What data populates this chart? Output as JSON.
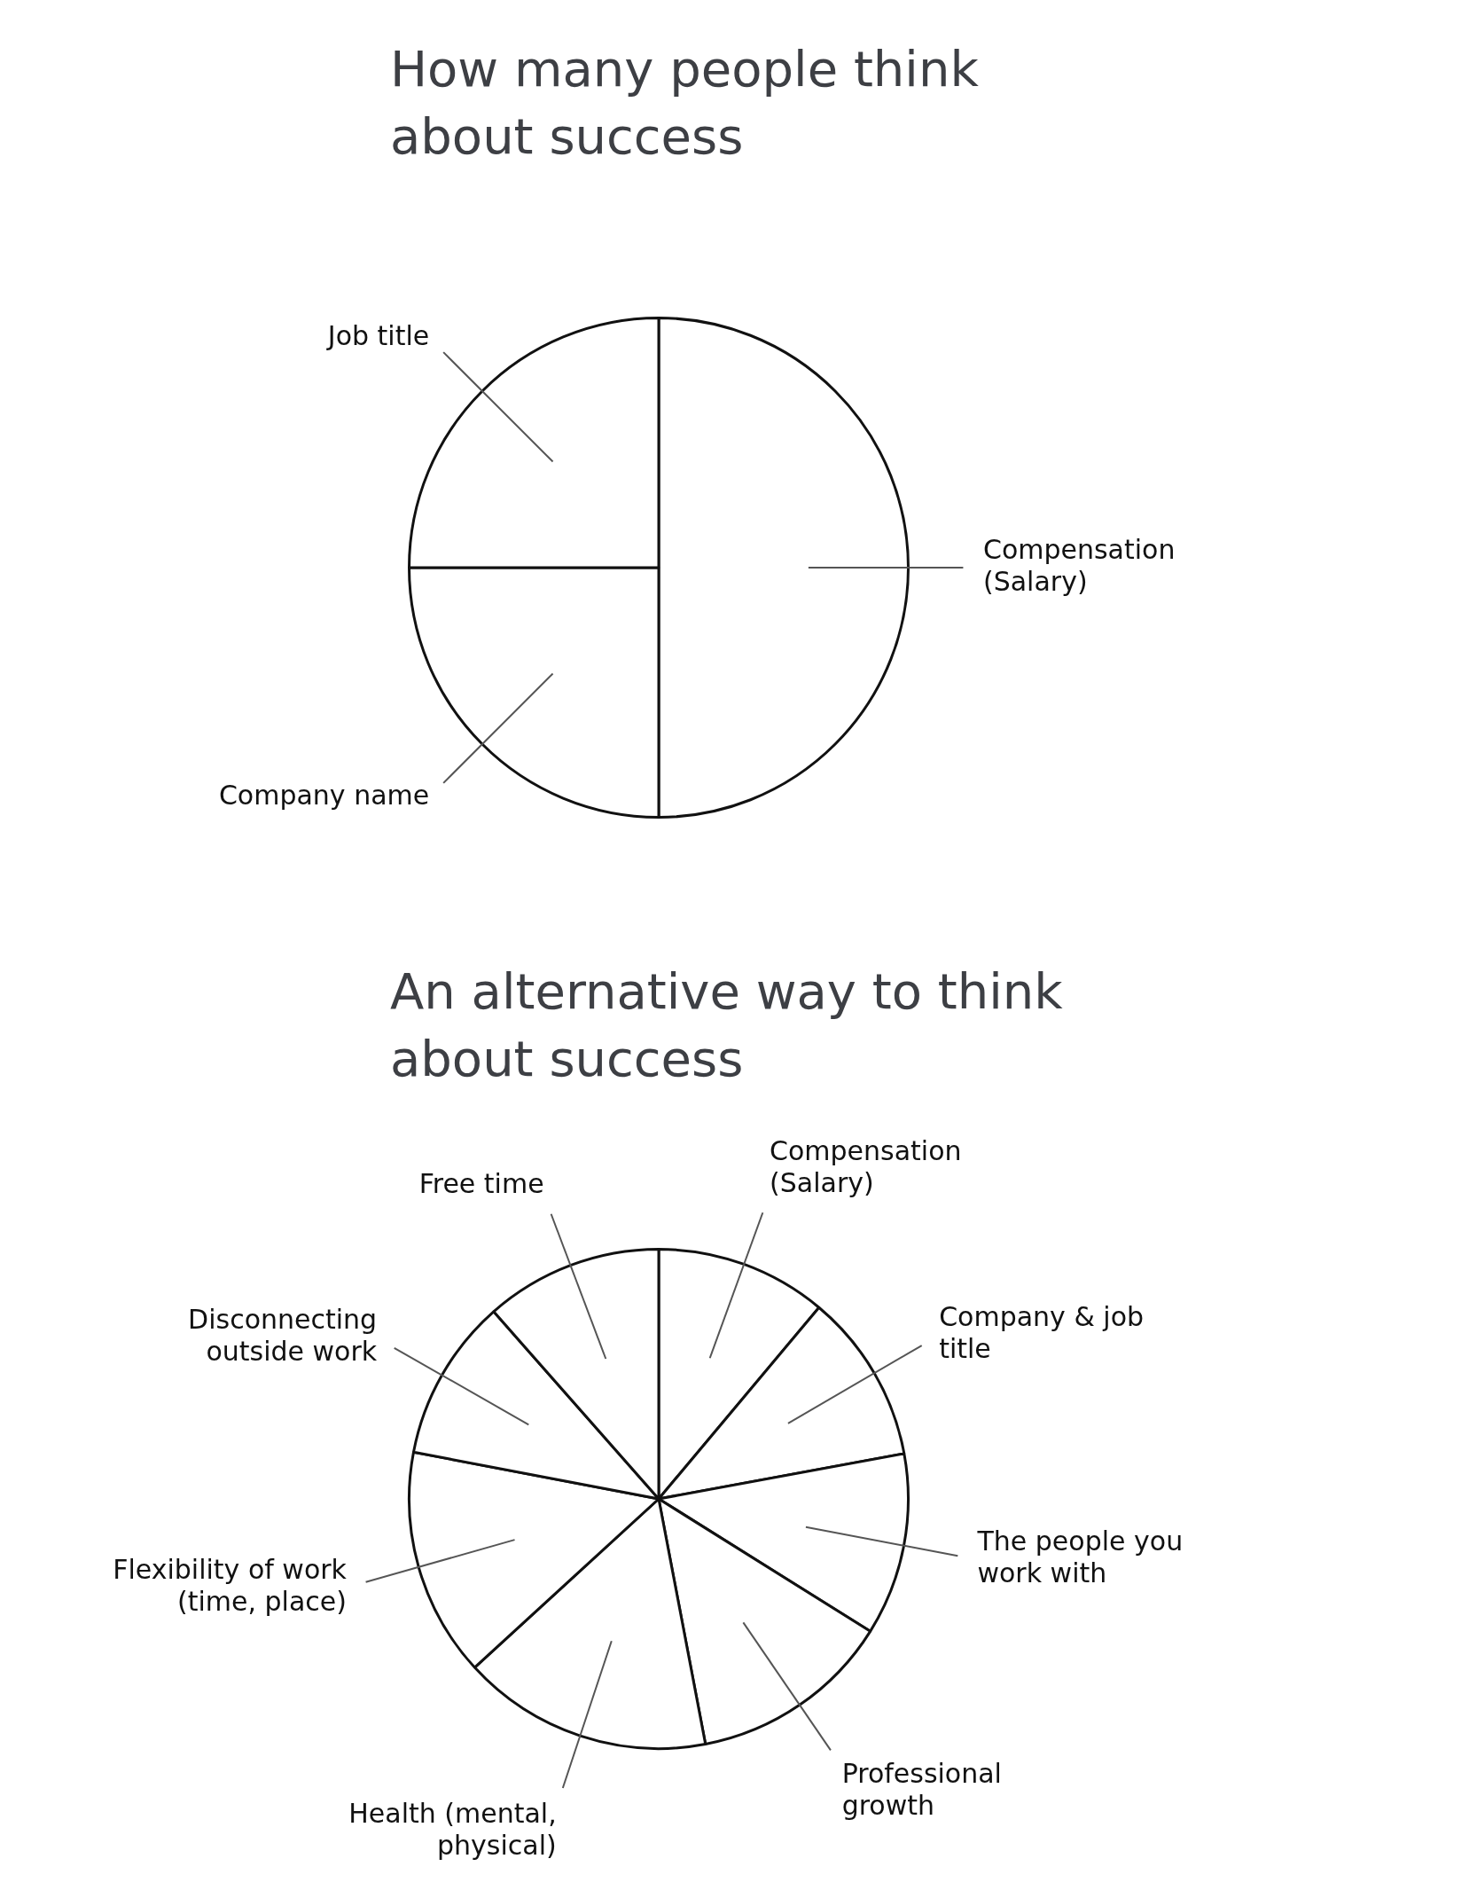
{
  "chart_data": [
    {
      "type": "pie",
      "title": "How many people think about success",
      "categories": [
        "Compensation (Salary)",
        "Company name",
        "Job title"
      ],
      "values": [
        50,
        25,
        25
      ],
      "colors": [
        "#ffffff",
        "#ffffff",
        "#ffffff"
      ],
      "legend": false
    },
    {
      "type": "pie",
      "title": "An alternative way to think about success",
      "categories": [
        "Compensation (Salary)",
        "Company & job title",
        "The people you work with",
        "Professional growth",
        "Health (mental, physical)",
        "Flexibility of work (time, place)",
        "Disconnecting outside work",
        "Free time"
      ],
      "values": [
        11.1,
        11,
        11.8,
        13.1,
        16.2,
        14.8,
        10.5,
        11.5
      ],
      "colors": [
        "#ffffff",
        "#ffffff",
        "#ffffff",
        "#ffffff",
        "#ffffff",
        "#ffffff",
        "#ffffff",
        "#ffffff"
      ],
      "legend": false
    }
  ]
}
